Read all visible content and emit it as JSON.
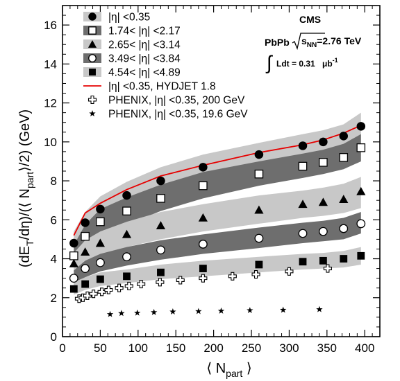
{
  "chart_data": {
    "type": "scatter",
    "xlabel": "⟨ N_part ⟩",
    "ylabel": "(dE_T/dη)/(⟨ N_part ⟩/2) (GeV)",
    "xlim": [
      0,
      420
    ],
    "ylim": [
      0,
      17
    ],
    "x_ticks": [
      0,
      50,
      100,
      150,
      200,
      250,
      300,
      350,
      400
    ],
    "y_ticks": [
      0,
      2,
      4,
      6,
      8,
      10,
      12,
      14,
      16
    ],
    "annotations": {
      "experiment": "CMS",
      "system": "PbPb √s_NN=2.76 TeV",
      "lumi": "∫ Ldt = 0.31 μb⁻¹"
    },
    "legend_position": "upper-left",
    "series": [
      {
        "name": "|η| <0.35",
        "marker": "filled-circle",
        "band_color": "#c8c8c8",
        "x": [
          15,
          30,
          50,
          85,
          130,
          186,
          260,
          318,
          345,
          372,
          395
        ],
        "y": [
          4.8,
          5.85,
          6.55,
          7.25,
          8.0,
          8.7,
          9.35,
          9.8,
          10.0,
          10.3,
          10.8
        ],
        "band_low": [
          4.2,
          5.1,
          5.8,
          6.5,
          7.3,
          7.95,
          8.6,
          9.1,
          9.4,
          9.7,
          10.1
        ],
        "band_high": [
          5.4,
          6.4,
          7.2,
          7.95,
          8.7,
          9.35,
          9.95,
          10.4,
          10.6,
          10.9,
          11.5
        ]
      },
      {
        "name": "1.74< |η| <2.17",
        "marker": "open-square",
        "band_color": "#6e6e6e",
        "x": [
          15,
          30,
          50,
          85,
          130,
          186,
          260,
          318,
          345,
          372,
          395
        ],
        "y": [
          4.15,
          5.15,
          5.9,
          6.45,
          7.1,
          7.75,
          8.35,
          8.75,
          8.95,
          9.2,
          9.7
        ],
        "band_low": [
          3.6,
          4.5,
          5.2,
          5.75,
          6.45,
          7.1,
          7.75,
          8.15,
          8.35,
          8.6,
          9.0
        ],
        "band_high": [
          4.7,
          5.75,
          6.55,
          7.15,
          7.8,
          8.45,
          9.0,
          9.4,
          9.6,
          9.9,
          10.4
        ]
      },
      {
        "name": "2.65< |η| <3.14",
        "marker": "filled-triangle",
        "band_color": "#c8c8c8",
        "x": [
          15,
          30,
          50,
          85,
          130,
          186,
          260,
          318,
          345,
          372,
          395
        ],
        "y": [
          3.75,
          4.35,
          4.8,
          5.25,
          5.7,
          6.1,
          6.5,
          6.8,
          6.9,
          7.05,
          7.45
        ],
        "band_low": [
          3.3,
          3.8,
          4.2,
          4.6,
          5.0,
          5.4,
          5.8,
          6.1,
          6.2,
          6.35,
          6.6
        ],
        "band_high": [
          4.3,
          4.95,
          5.4,
          5.9,
          6.4,
          6.8,
          7.25,
          7.5,
          7.65,
          7.85,
          8.2
        ]
      },
      {
        "name": "3.49< |η| <3.84",
        "marker": "open-circle",
        "band_color": "#6e6e6e",
        "x": [
          15,
          30,
          50,
          85,
          130,
          186,
          260,
          318,
          345,
          372,
          395
        ],
        "y": [
          3.0,
          3.5,
          3.8,
          4.1,
          4.45,
          4.75,
          5.05,
          5.3,
          5.4,
          5.55,
          5.8
        ],
        "band_low": [
          2.65,
          3.05,
          3.35,
          3.65,
          3.95,
          4.25,
          4.55,
          4.8,
          4.9,
          5.0,
          5.3
        ],
        "band_high": [
          3.4,
          3.9,
          4.25,
          4.6,
          4.95,
          5.25,
          5.6,
          5.85,
          5.95,
          6.1,
          6.4
        ]
      },
      {
        "name": "4.54< |η| <4.89",
        "marker": "filled-square",
        "band_color": "#c8c8c8",
        "x": [
          15,
          30,
          50,
          85,
          130,
          186,
          260,
          318,
          345,
          372,
          395
        ],
        "y": [
          2.45,
          2.7,
          2.95,
          3.1,
          3.3,
          3.5,
          3.7,
          3.85,
          3.9,
          4.0,
          4.15
        ],
        "band_low": [
          2.15,
          2.4,
          2.6,
          2.75,
          2.95,
          3.1,
          3.3,
          3.45,
          3.5,
          3.55,
          3.7
        ],
        "band_high": [
          2.8,
          3.05,
          3.3,
          3.45,
          3.7,
          3.9,
          4.1,
          4.25,
          4.3,
          4.4,
          4.6
        ]
      },
      {
        "name": "|η| <0.35, HYDJET 1.8",
        "marker": "line",
        "color": "#e60000",
        "x": [
          15,
          30,
          50,
          85,
          130,
          186,
          260,
          318,
          345,
          372,
          395
        ],
        "y": [
          5.2,
          6.35,
          6.85,
          7.55,
          8.25,
          8.8,
          9.45,
          9.85,
          10.1,
          10.45,
          10.85
        ]
      },
      {
        "name": "PHENIX, |η| <0.35, 200 GeV",
        "marker": "open-cross",
        "x": [
          22,
          27,
          33,
          41,
          52,
          61,
          75,
          88,
          104,
          129,
          156,
          186,
          225,
          256,
          300,
          351
        ],
        "y": [
          1.95,
          2.0,
          2.1,
          2.2,
          2.3,
          2.4,
          2.5,
          2.6,
          2.7,
          2.8,
          2.9,
          3.0,
          3.1,
          3.2,
          3.35,
          3.5
        ]
      },
      {
        "name": "PHENIX, |η| <0.35, 19.6 GeV",
        "marker": "star",
        "x": [
          63,
          78,
          99,
          121,
          146,
          180,
          210,
          248,
          292,
          340
        ],
        "y": [
          1.15,
          1.2,
          1.22,
          1.25,
          1.28,
          1.3,
          1.32,
          1.35,
          1.37,
          1.4
        ]
      }
    ]
  }
}
